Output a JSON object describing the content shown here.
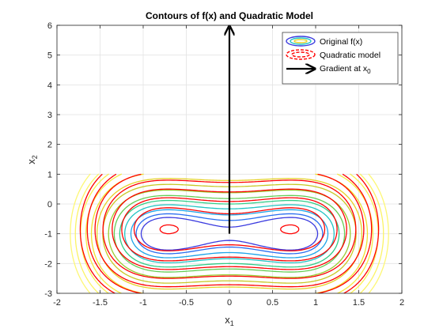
{
  "chart_data": {
    "type": "contour",
    "title": "Contours of f(x) and Quadratic Model",
    "xlabel": "x",
    "xlabel_sub": "1",
    "ylabel": "x",
    "ylabel_sub": "2",
    "xlim": [
      -2,
      2
    ],
    "ylim": [
      -3,
      6
    ],
    "data_ylim": [
      -3,
      1
    ],
    "xticks": [
      "-2",
      "-1.5",
      "-1",
      "-0.5",
      "0",
      "0.5",
      "1",
      "1.5",
      "2"
    ],
    "yticks": [
      "-3",
      "-2",
      "-1",
      "0",
      "1",
      "2",
      "3",
      "4",
      "5",
      "6"
    ],
    "grid": true,
    "legend_position": "top-right",
    "legend": [
      {
        "label": "Original f(x)",
        "style": "contour-solid"
      },
      {
        "label": "Quadratic model",
        "style": "contour-dashed"
      },
      {
        "label": "Gradient at x",
        "sub": "0",
        "style": "arrow"
      }
    ],
    "x0": [
      0,
      -1
    ],
    "gradient_arrow": {
      "start": [
        0,
        -1
      ],
      "end": [
        0,
        6
      ]
    },
    "original_contours": {
      "function": "x1^4 - x1^2 + x2^2 + 2*x2",
      "style": "solid",
      "levels": [
        -0.95,
        -0.8,
        -0.6,
        -0.3,
        0,
        0.4,
        0.9,
        1.5,
        2.2,
        3.0,
        3.9,
        4.9,
        6.0,
        7.2
      ],
      "colors": [
        "#3a3adf",
        "#2a6ef0",
        "#1ea3e8",
        "#22c4c4",
        "#33cc88",
        "#66cc55",
        "#99cc33",
        "#c8c828",
        "#e6d22a",
        "#f0e030",
        "#f5ea45",
        "#f8ef55",
        "#fbf365",
        "#fdf775"
      ]
    },
    "quadratic_contours": {
      "function": "x1^4 - x1^2 + x2^2 + 2*x2 (shifted)",
      "style": "dashed",
      "levels": [
        -0.7,
        -0.2,
        0.4,
        1.1,
        2.0,
        3.0,
        4.2,
        5.5
      ],
      "color": "#ff0000"
    }
  }
}
